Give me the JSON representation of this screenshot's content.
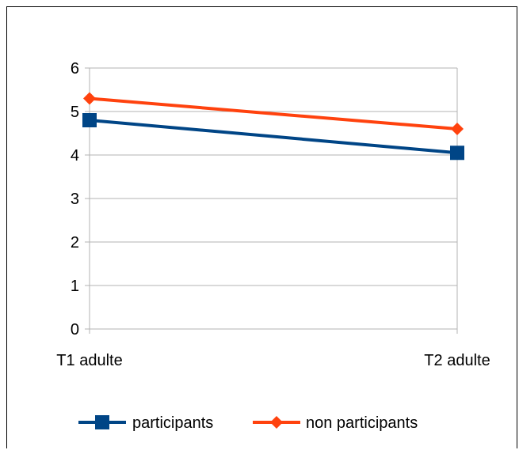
{
  "chart_data": {
    "type": "line",
    "categories": [
      "T1 adulte",
      "T2 adulte"
    ],
    "series": [
      {
        "name": "participants",
        "values": [
          4.8,
          4.05
        ],
        "color": "#004586",
        "marker": "square"
      },
      {
        "name": "non participants",
        "values": [
          5.3,
          4.6
        ],
        "color": "#ff420e",
        "marker": "diamond"
      }
    ],
    "title": "",
    "xlabel": "",
    "ylabel": "",
    "ylim": [
      0,
      6
    ],
    "yticks": [
      0,
      1,
      2,
      3,
      4,
      5,
      6
    ],
    "grid": true,
    "legend": "bottom"
  }
}
